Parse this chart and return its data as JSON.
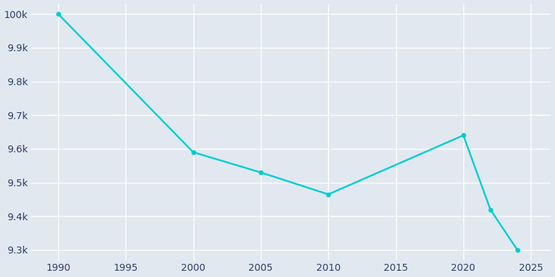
{
  "years": [
    1990,
    2000,
    2005,
    2010,
    2020,
    2022,
    2024
  ],
  "population": [
    10000,
    9590,
    9530,
    9465,
    9640,
    9420,
    9300
  ],
  "line_color": "#00CED1",
  "bg_color": "#E1E8F0",
  "grid_color": "#FFFFFF",
  "text_color": "#2C3E6B",
  "ylim": [
    9270,
    10030
  ],
  "xlim": [
    1988,
    2026.5
  ],
  "yticks": [
    9300,
    9400,
    9500,
    9600,
    9700,
    9800,
    9900,
    10000
  ],
  "xticks": [
    1990,
    1995,
    2000,
    2005,
    2010,
    2015,
    2020,
    2025
  ],
  "linewidth": 1.8,
  "markersize": 4
}
